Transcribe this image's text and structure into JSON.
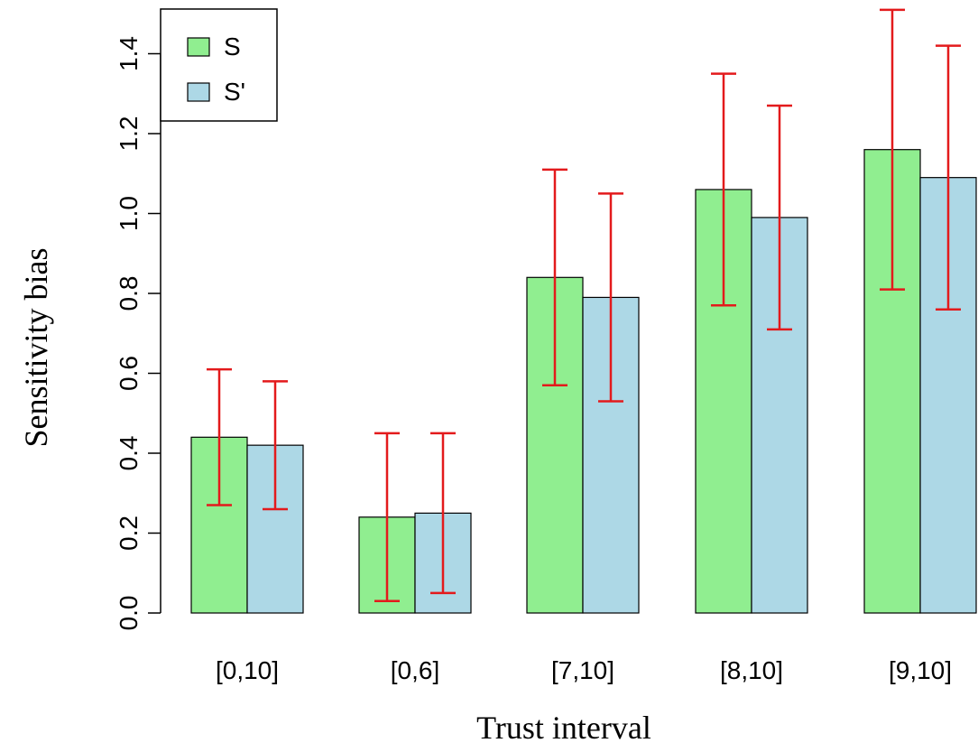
{
  "chart_data": {
    "type": "bar",
    "title": "",
    "xlabel": "Trust interval",
    "ylabel": "Sensitivity bias",
    "categories": [
      "[0,10]",
      "[0,6]",
      "[7,10]",
      "[8,10]",
      "[9,10]"
    ],
    "ylim": [
      0.0,
      1.5
    ],
    "yticks": [
      "0.0",
      "0.2",
      "0.4",
      "0.6",
      "0.8",
      "1.0",
      "1.2",
      "1.4"
    ],
    "legend_position": "top-left",
    "grid": false,
    "error_bar_color": "#e31a1c",
    "series": [
      {
        "name": "S",
        "color": "#90ee90",
        "values": [
          0.44,
          0.24,
          0.84,
          1.06,
          1.16
        ],
        "error_low": [
          0.27,
          0.03,
          0.57,
          0.77,
          0.81
        ],
        "error_high": [
          0.61,
          0.45,
          1.11,
          1.35,
          1.51
        ]
      },
      {
        "name": "S'",
        "color": "#add8e6",
        "values": [
          0.42,
          0.25,
          0.79,
          0.99,
          1.09
        ],
        "error_low": [
          0.26,
          0.05,
          0.53,
          0.71,
          0.76
        ],
        "error_high": [
          0.58,
          0.45,
          1.05,
          1.27,
          1.42
        ]
      }
    ]
  }
}
